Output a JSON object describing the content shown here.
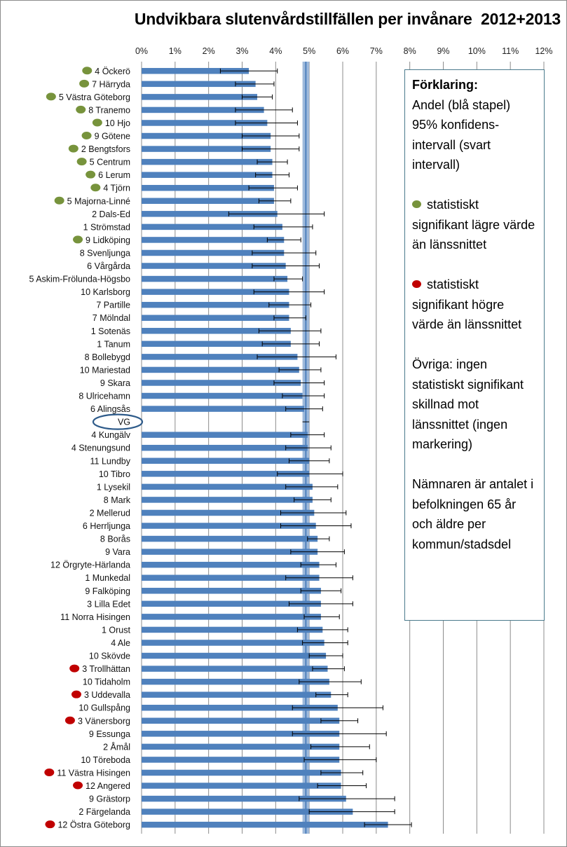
{
  "colors": {
    "bar": "#4f81bd",
    "reference_band": "#95b3d7",
    "reference_line": "#4f81bd",
    "low_marker": "#77933c",
    "high_marker": "#c00000",
    "error_bar": "#000000",
    "grid": "#8c8c8c",
    "vg_circle": "#2e5b8a"
  },
  "legend": {
    "title": "Förklaring:",
    "bar_desc": "Andel (blå stapel)",
    "ci_desc": "95% konfidens-intervall (svart intervall)",
    "low_text": "statistiskt signifikant lägre värde än länssnittet",
    "low_icon": "green-dot-icon",
    "high_text": "statistiskt signifikant högre värde än länssnittet",
    "high_icon": "red-dot-icon",
    "other_text": "Övriga: ingen statistiskt signifikant skillnad mot länssnittet (ingen markering)",
    "denominator_text": "Nämnaren är antalet i befolkningen 65 år och äldre per kommun/stadsdel"
  },
  "chart_data": {
    "type": "bar",
    "orientation": "horizontal",
    "title": "Undvikbara slutenvårdstillfällen per invånare  2012+2013",
    "xlim": [
      0,
      12
    ],
    "x_ticks": [
      "0%",
      "1%",
      "2%",
      "3%",
      "4%",
      "5%",
      "6%",
      "7%",
      "8%",
      "9%",
      "10%",
      "11%",
      "12%"
    ],
    "x_axis_position": "top",
    "grid": "vertical",
    "reference": {
      "name": "VG",
      "value": 4.9,
      "ci": [
        4.8,
        5.0
      ]
    },
    "categories": [
      {
        "label": "4 Öckerö",
        "value": 3.2,
        "ci": [
          2.35,
          4.05
        ],
        "marker": "low"
      },
      {
        "label": "7 Härryda",
        "value": 3.4,
        "ci": [
          2.8,
          3.95
        ],
        "marker": "low"
      },
      {
        "label": "5 Västra Göteborg",
        "value": 3.45,
        "ci": [
          3.0,
          3.9
        ],
        "marker": "low"
      },
      {
        "label": "8 Tranemo",
        "value": 3.65,
        "ci": [
          2.8,
          4.5
        ],
        "marker": "low"
      },
      {
        "label": "10 Hjo",
        "value": 3.75,
        "ci": [
          2.8,
          4.65
        ],
        "marker": "low"
      },
      {
        "label": "9 Götene",
        "value": 3.85,
        "ci": [
          3.0,
          4.7
        ],
        "marker": "low"
      },
      {
        "label": "2 Bengtsfors",
        "value": 3.85,
        "ci": [
          3.0,
          4.7
        ],
        "marker": "low"
      },
      {
        "label": "5 Centrum",
        "value": 3.9,
        "ci": [
          3.45,
          4.35
        ],
        "marker": "low"
      },
      {
        "label": "6 Lerum",
        "value": 3.9,
        "ci": [
          3.4,
          4.4
        ],
        "marker": "low"
      },
      {
        "label": "4 Tjörn",
        "value": 3.95,
        "ci": [
          3.2,
          4.65
        ],
        "marker": "low"
      },
      {
        "label": "5 Majorna-Linné",
        "value": 3.95,
        "ci": [
          3.5,
          4.45
        ],
        "marker": "low"
      },
      {
        "label": "2 Dals-Ed",
        "value": 4.05,
        "ci": [
          2.6,
          5.45
        ],
        "marker": "none"
      },
      {
        "label": "1 Strömstad",
        "value": 4.2,
        "ci": [
          3.35,
          5.1
        ],
        "marker": "none"
      },
      {
        "label": "9 Lidköping",
        "value": 4.25,
        "ci": [
          3.75,
          4.75
        ],
        "marker": "low"
      },
      {
        "label": "8 Svenljunga",
        "value": 4.25,
        "ci": [
          3.3,
          5.2
        ],
        "marker": "none"
      },
      {
        "label": "6 Vårgårda",
        "value": 4.3,
        "ci": [
          3.3,
          5.3
        ],
        "marker": "none"
      },
      {
        "label": "5 Askim-Frölunda-Högsbo",
        "value": 4.35,
        "ci": [
          3.95,
          4.8
        ],
        "marker": "none"
      },
      {
        "label": "10 Karlsborg",
        "value": 4.4,
        "ci": [
          3.35,
          5.45
        ],
        "marker": "none"
      },
      {
        "label": "7 Partille",
        "value": 4.4,
        "ci": [
          3.8,
          5.05
        ],
        "marker": "none"
      },
      {
        "label": "7 Mölndal",
        "value": 4.4,
        "ci": [
          3.95,
          4.9
        ],
        "marker": "none"
      },
      {
        "label": "1 Sotenäs",
        "value": 4.45,
        "ci": [
          3.5,
          5.35
        ],
        "marker": "none"
      },
      {
        "label": "1 Tanum",
        "value": 4.45,
        "ci": [
          3.6,
          5.3
        ],
        "marker": "none"
      },
      {
        "label": "8 Bollebygd",
        "value": 4.65,
        "ci": [
          3.45,
          5.8
        ],
        "marker": "none"
      },
      {
        "label": "10 Mariestad",
        "value": 4.7,
        "ci": [
          4.1,
          5.35
        ],
        "marker": "none"
      },
      {
        "label": "9 Skara",
        "value": 4.75,
        "ci": [
          3.95,
          5.45
        ],
        "marker": "none"
      },
      {
        "label": "8 Ulricehamn",
        "value": 4.8,
        "ci": [
          4.2,
          5.45
        ],
        "marker": "none"
      },
      {
        "label": "6 Alingsås",
        "value": 4.85,
        "ci": [
          4.3,
          5.4
        ],
        "marker": "none"
      },
      {
        "label": "VG",
        "value": 4.9,
        "ci": [
          4.8,
          5.0
        ],
        "marker": "reference"
      },
      {
        "label": "4 Kungälv",
        "value": 4.95,
        "ci": [
          4.45,
          5.45
        ],
        "marker": "none"
      },
      {
        "label": "4 Stenungsund",
        "value": 4.95,
        "ci": [
          4.3,
          5.65
        ],
        "marker": "none"
      },
      {
        "label": "11 Lundby",
        "value": 5.0,
        "ci": [
          4.4,
          5.6
        ],
        "marker": "none"
      },
      {
        "label": "10 Tibro",
        "value": 5.0,
        "ci": [
          4.05,
          6.0
        ],
        "marker": "none"
      },
      {
        "label": "1 Lysekil",
        "value": 5.1,
        "ci": [
          4.3,
          5.85
        ],
        "marker": "none"
      },
      {
        "label": "8 Mark",
        "value": 5.1,
        "ci": [
          4.55,
          5.65
        ],
        "marker": "none"
      },
      {
        "label": "2 Mellerud",
        "value": 5.15,
        "ci": [
          4.15,
          6.1
        ],
        "marker": "none"
      },
      {
        "label": "6 Herrljunga",
        "value": 5.2,
        "ci": [
          4.15,
          6.25
        ],
        "marker": "none"
      },
      {
        "label": "8 Borås",
        "value": 5.25,
        "ci": [
          4.95,
          5.6
        ],
        "marker": "none"
      },
      {
        "label": "9 Vara",
        "value": 5.25,
        "ci": [
          4.45,
          6.05
        ],
        "marker": "none"
      },
      {
        "label": "12 Örgryte-Härlanda",
        "value": 5.3,
        "ci": [
          4.75,
          5.8
        ],
        "marker": "none"
      },
      {
        "label": "1 Munkedal",
        "value": 5.3,
        "ci": [
          4.3,
          6.3
        ],
        "marker": "none"
      },
      {
        "label": "9 Falköping",
        "value": 5.35,
        "ci": [
          4.75,
          5.95
        ],
        "marker": "none"
      },
      {
        "label": "3 Lilla Edet",
        "value": 5.35,
        "ci": [
          4.4,
          6.3
        ],
        "marker": "none"
      },
      {
        "label": "11 Norra Hisingen",
        "value": 5.35,
        "ci": [
          4.85,
          5.9
        ],
        "marker": "none"
      },
      {
        "label": "1 Orust",
        "value": 5.4,
        "ci": [
          4.65,
          6.15
        ],
        "marker": "none"
      },
      {
        "label": "4 Ale",
        "value": 5.45,
        "ci": [
          4.8,
          6.15
        ],
        "marker": "none"
      },
      {
        "label": "10 Skövde",
        "value": 5.5,
        "ci": [
          5.0,
          6.0
        ],
        "marker": "none"
      },
      {
        "label": "3 Trollhättan",
        "value": 5.55,
        "ci": [
          5.1,
          6.05
        ],
        "marker": "high"
      },
      {
        "label": "10 Tidaholm",
        "value": 5.6,
        "ci": [
          4.7,
          6.55
        ],
        "marker": "none"
      },
      {
        "label": "3 Uddevalla",
        "value": 5.65,
        "ci": [
          5.2,
          6.15
        ],
        "marker": "high"
      },
      {
        "label": "10 Gullspång",
        "value": 5.85,
        "ci": [
          4.5,
          7.2
        ],
        "marker": "none"
      },
      {
        "label": "3 Vänersborg",
        "value": 5.9,
        "ci": [
          5.35,
          6.45
        ],
        "marker": "high"
      },
      {
        "label": "9 Essunga",
        "value": 5.9,
        "ci": [
          4.5,
          7.3
        ],
        "marker": "none"
      },
      {
        "label": "2 Åmål",
        "value": 5.9,
        "ci": [
          5.05,
          6.8
        ],
        "marker": "none"
      },
      {
        "label": "10 Töreboda",
        "value": 5.9,
        "ci": [
          4.85,
          7.0
        ],
        "marker": "none"
      },
      {
        "label": "11 Västra Hisingen",
        "value": 5.95,
        "ci": [
          5.35,
          6.6
        ],
        "marker": "high"
      },
      {
        "label": "12 Angered",
        "value": 5.95,
        "ci": [
          5.25,
          6.7
        ],
        "marker": "high"
      },
      {
        "label": "9 Grästorp",
        "value": 6.1,
        "ci": [
          4.7,
          7.55
        ],
        "marker": "none"
      },
      {
        "label": "2 Färgelanda",
        "value": 6.3,
        "ci": [
          5.0,
          7.55
        ],
        "marker": "none"
      },
      {
        "label": "12 Östra Göteborg",
        "value": 7.35,
        "ci": [
          6.65,
          8.05
        ],
        "marker": "high"
      }
    ]
  }
}
